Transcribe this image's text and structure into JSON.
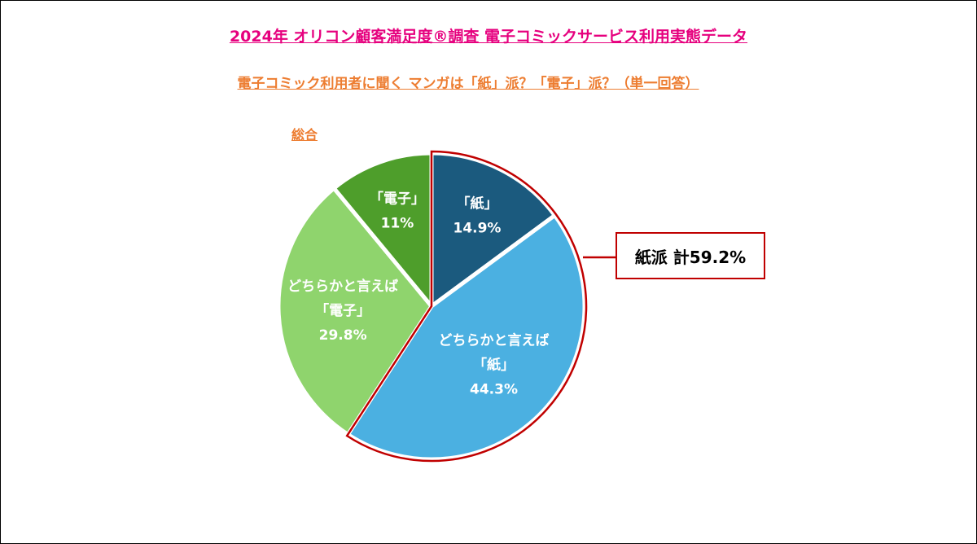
{
  "title": "2024年 オリコン顧客満足度®調査 電子コミックサービス利用実態データ",
  "subtitle": "電子コミック利用者に聞く マンガは「紙」派？「電子」派？（単一回答）",
  "group_label": "総合",
  "callout": "紙派 計59.2%",
  "colors": {
    "title": "#e6007e",
    "subtitle": "#ed7d31",
    "callout_border": "#c00000"
  },
  "chart_data": {
    "type": "pie",
    "unit": "%",
    "start": "12 o'clock, clockwise",
    "slices": [
      {
        "label": "「紙」",
        "value": 14.9,
        "display": "14.9%",
        "color": "#1b5a7e"
      },
      {
        "label_lines": [
          "どちらかと言えば",
          "「紙」"
        ],
        "value": 44.3,
        "display": "44.3%",
        "color": "#4bb0e1"
      },
      {
        "label_lines": [
          "どちらかと言えば",
          "「電子」"
        ],
        "value": 29.8,
        "display": "29.8%",
        "color": "#8fd46d"
      },
      {
        "label": "「電子」",
        "value": 11,
        "display": "11%",
        "color": "#4e9e2b"
      }
    ]
  }
}
